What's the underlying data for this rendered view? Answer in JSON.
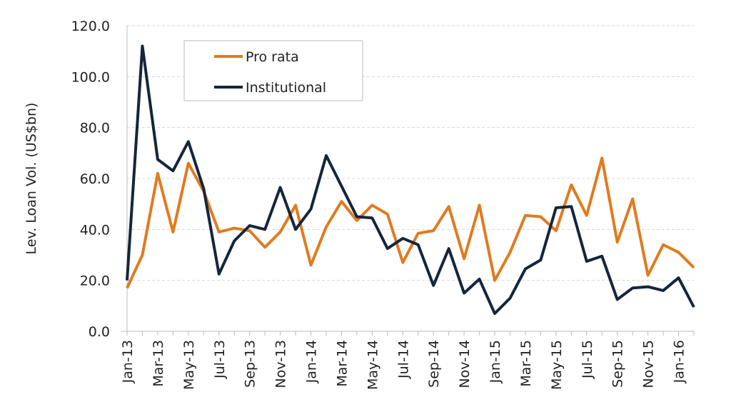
{
  "chart_data": {
    "type": "line",
    "y_label": "Lev. Loan Vol. (US$bn)",
    "categories": [
      "Jan-13",
      null,
      "Mar-13",
      null,
      "May-13",
      null,
      "Jul-13",
      null,
      "Sep-13",
      null,
      "Nov-13",
      null,
      "Jan-14",
      null,
      "Mar-14",
      null,
      "May-14",
      null,
      "Jul-14",
      null,
      "Sep-14",
      null,
      "Nov-14",
      null,
      "Jan-15",
      null,
      "Mar-15",
      null,
      "May-15",
      null,
      "Jul-15",
      null,
      "Sep-15",
      null,
      "Nov-15",
      null,
      "Jan-16",
      null
    ],
    "series": [
      {
        "name": "Pro rata",
        "color": "#e07b1f",
        "values": [
          17,
          30,
          62,
          39,
          66,
          55,
          39,
          40.5,
          39.5,
          33,
          39,
          49.5,
          26,
          41,
          51,
          43.5,
          49.5,
          46,
          27,
          38.5,
          39.5,
          49,
          28.5,
          49.5,
          20,
          31,
          45.5,
          45,
          39.5,
          57.5,
          45.5,
          68,
          35,
          52,
          22,
          34,
          31,
          25
        ]
      },
      {
        "name": "Institutional",
        "color": "#14263d",
        "values": [
          20,
          112,
          67.5,
          63,
          74.5,
          56,
          22.5,
          35.5,
          41.5,
          40,
          56.5,
          40,
          48,
          69,
          57,
          45,
          44.5,
          32.5,
          36.5,
          34,
          18,
          32.5,
          15,
          20.5,
          7,
          13,
          24.5,
          28,
          48.5,
          49,
          27.5,
          29.5,
          12.5,
          17,
          17.5,
          16,
          21,
          9.5
        ]
      }
    ],
    "ylim": [
      0,
      120
    ],
    "yticks": [
      {
        "value": 0,
        "label": "0.0"
      },
      {
        "value": 20,
        "label": "20.0"
      },
      {
        "value": 40,
        "label": "40.0"
      },
      {
        "value": 60,
        "label": "60.0"
      },
      {
        "value": 80,
        "label": "80.0"
      },
      {
        "value": 100,
        "label": "100.0"
      },
      {
        "value": 120,
        "label": "120.0"
      }
    ],
    "grid": true,
    "legend": "upper left"
  }
}
